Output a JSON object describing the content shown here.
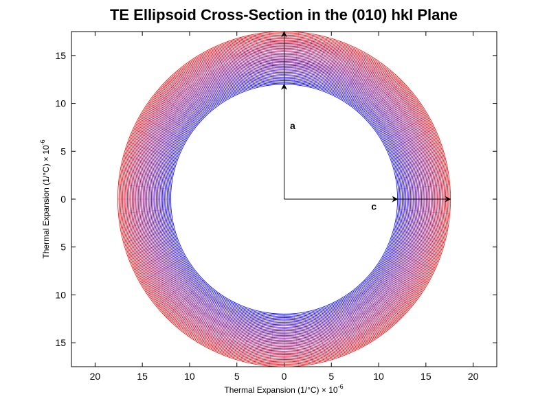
{
  "chart_data": {
    "type": "line",
    "title": "TE Ellipsoid Cross-Section in the (010) hkl Plane",
    "xlabel": "Thermal Expansion (1/°C) × 10",
    "xlabel_exponent": "-6",
    "ylabel": "Thermal Expansion (1/°C) × 10",
    "ylabel_exponent": "-6",
    "xlim": [
      -22.5,
      22.5
    ],
    "ylim": [
      -17.5,
      17.5
    ],
    "xticks": [
      -20,
      -15,
      -10,
      -5,
      0,
      5,
      10,
      15,
      20
    ],
    "xtick_labels": [
      "20",
      "15",
      "10",
      "5",
      "0",
      "5",
      "10",
      "15",
      "20"
    ],
    "yticks": [
      15,
      10,
      5,
      0,
      -5,
      -10,
      -15
    ],
    "ytick_labels": [
      "15",
      "10",
      "5",
      "0",
      "5",
      "10",
      "15"
    ],
    "grid": false,
    "ellipse_family": {
      "description_of_shape": "family of nested ellipses centered at origin",
      "inner_a_axis": 12.0,
      "inner_c_axis": 12.0,
      "outer_a_axis": 17.5,
      "outer_c_axis": 17.6,
      "count": 45,
      "color_inner": "#0000ff",
      "color_outer": "#ff0000"
    },
    "annotations": [
      {
        "label": "a",
        "axis": "a",
        "arrow_to": [
          0,
          12.0
        ],
        "outer_arrow_to": [
          0,
          17.5
        ],
        "text_at": [
          0.9,
          7.3
        ]
      },
      {
        "label": "c",
        "axis": "c",
        "arrow_to": [
          12.0,
          0
        ],
        "outer_arrow_to": [
          17.6,
          0
        ],
        "text_at": [
          9.5,
          -1.1
        ]
      }
    ],
    "colors": {
      "axes": "#000000",
      "background": "#ffffff"
    }
  }
}
